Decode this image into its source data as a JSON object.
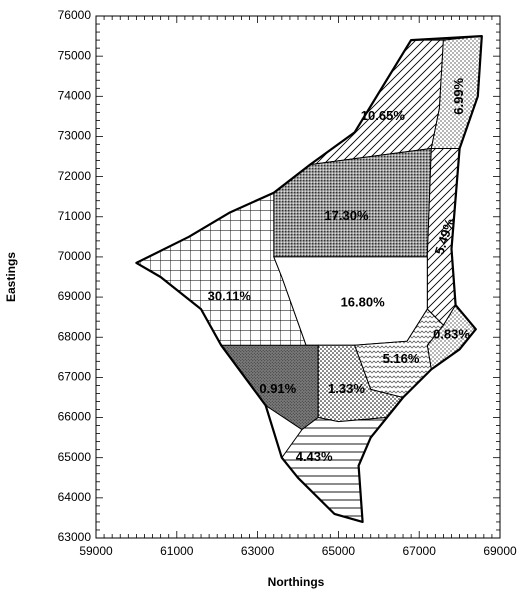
{
  "chart_data": {
    "type": "map",
    "title": "",
    "xlabel": "Northings",
    "ylabel": "Eastings",
    "xlim": [
      59000,
      69000
    ],
    "ylim": [
      63000,
      76000
    ],
    "x_ticks": [
      59000,
      61000,
      63000,
      65000,
      67000,
      69000
    ],
    "y_ticks": [
      63000,
      64000,
      65000,
      66000,
      67000,
      68000,
      69000,
      70000,
      71000,
      72000,
      73000,
      74000,
      75000,
      76000
    ],
    "grid": false,
    "regions": [
      {
        "label": "10.65%",
        "value": 10.65,
        "pattern": "diagonal-lines",
        "boundary": [
          [
            64300,
            72300
          ],
          [
            65400,
            73100
          ],
          [
            66800,
            75400
          ],
          [
            67600,
            75400
          ],
          [
            67500,
            73700
          ],
          [
            67300,
            72700
          ],
          [
            64300,
            72300
          ]
        ],
        "label_at": [
          66100,
          73500
        ],
        "label_rotation": 0
      },
      {
        "label": "6.99%",
        "value": 6.99,
        "pattern": "fine-dots",
        "boundary": [
          [
            67600,
            75400
          ],
          [
            68550,
            75500
          ],
          [
            68450,
            74000
          ],
          [
            68000,
            72700
          ],
          [
            67300,
            72700
          ],
          [
            67500,
            73700
          ],
          [
            67600,
            75400
          ]
        ],
        "label_at": [
          68000,
          74000
        ],
        "label_rotation": -90
      },
      {
        "label": "17.30%",
        "value": 17.3,
        "pattern": "dense-dots",
        "boundary": [
          [
            63400,
            71600
          ],
          [
            64300,
            72300
          ],
          [
            67300,
            72700
          ],
          [
            67200,
            70000
          ],
          [
            63400,
            70000
          ],
          [
            63400,
            71600
          ]
        ],
        "label_at": [
          65200,
          71000
        ],
        "label_rotation": 0
      },
      {
        "label": "5.49%",
        "value": 5.49,
        "pattern": "diagonal-lines",
        "boundary": [
          [
            67300,
            72700
          ],
          [
            68000,
            72700
          ],
          [
            67800,
            70200
          ],
          [
            67900,
            68800
          ],
          [
            67600,
            68300
          ],
          [
            67200,
            68700
          ],
          [
            67200,
            70000
          ],
          [
            67300,
            72700
          ]
        ],
        "label_at": [
          67650,
          70500
        ],
        "label_rotation": -72
      },
      {
        "label": "30.11%",
        "value": 30.11,
        "pattern": "grid",
        "boundary": [
          [
            60000,
            69850
          ],
          [
            61300,
            70500
          ],
          [
            62300,
            71100
          ],
          [
            63400,
            71600
          ],
          [
            63400,
            70000
          ],
          [
            63600,
            69500
          ],
          [
            64200,
            67800
          ],
          [
            62800,
            67700
          ],
          [
            62100,
            67800
          ],
          [
            61600,
            68700
          ],
          [
            60600,
            69500
          ],
          [
            60000,
            69850
          ]
        ],
        "label_at": [
          62300,
          69000
        ],
        "label_rotation": 0
      },
      {
        "label": "16.80%",
        "value": 16.8,
        "pattern": "none",
        "boundary": [
          [
            63400,
            70000
          ],
          [
            67200,
            70000
          ],
          [
            67200,
            68700
          ],
          [
            66700,
            67900
          ],
          [
            65400,
            67800
          ],
          [
            64200,
            67800
          ],
          [
            63600,
            69500
          ],
          [
            63400,
            70000
          ]
        ],
        "label_at": [
          65600,
          68850
        ],
        "label_rotation": 0
      },
      {
        "label": "0.83%",
        "value": 0.83,
        "pattern": "fine-dots",
        "boundary": [
          [
            67600,
            68300
          ],
          [
            67900,
            68800
          ],
          [
            68400,
            68200
          ],
          [
            68000,
            67700
          ],
          [
            67300,
            67200
          ],
          [
            67200,
            67800
          ],
          [
            67600,
            68300
          ]
        ],
        "label_at": [
          67800,
          68050
        ],
        "label_rotation": 0
      },
      {
        "label": "5.16%",
        "value": 5.16,
        "pattern": "wavy",
        "boundary": [
          [
            65400,
            67800
          ],
          [
            66700,
            67900
          ],
          [
            67200,
            68700
          ],
          [
            67600,
            68300
          ],
          [
            67200,
            67800
          ],
          [
            67300,
            67200
          ],
          [
            66600,
            66500
          ],
          [
            65800,
            66700
          ],
          [
            65400,
            67800
          ]
        ],
        "label_at": [
          66550,
          67450
        ],
        "label_rotation": 0
      },
      {
        "label": "0.91%",
        "value": 0.91,
        "pattern": "solid-dark",
        "boundary": [
          [
            62100,
            67800
          ],
          [
            64500,
            67800
          ],
          [
            64500,
            66000
          ],
          [
            64100,
            65700
          ],
          [
            63200,
            66300
          ],
          [
            62100,
            67800
          ]
        ],
        "label_at": [
          63500,
          66700
        ],
        "label_rotation": 0
      },
      {
        "label": "1.33%",
        "value": 1.33,
        "pattern": "dots",
        "boundary": [
          [
            64500,
            67800
          ],
          [
            65400,
            67800
          ],
          [
            65800,
            66700
          ],
          [
            66600,
            66500
          ],
          [
            66200,
            66000
          ],
          [
            65000,
            65900
          ],
          [
            64500,
            66000
          ],
          [
            64500,
            67800
          ]
        ],
        "label_at": [
          65200,
          66700
        ],
        "label_rotation": 0
      },
      {
        "label": "4.43%",
        "value": 4.43,
        "pattern": "horizontal-lines",
        "boundary": [
          [
            64100,
            65700
          ],
          [
            64500,
            66000
          ],
          [
            65000,
            65900
          ],
          [
            66200,
            66000
          ],
          [
            65800,
            65500
          ],
          [
            65500,
            64800
          ],
          [
            65600,
            63400
          ],
          [
            64900,
            63600
          ],
          [
            64000,
            64500
          ],
          [
            63600,
            65000
          ],
          [
            64100,
            65700
          ]
        ],
        "label_at": [
          64400,
          65000
        ],
        "label_rotation": 0
      }
    ]
  },
  "colors": {
    "axis": "#000000",
    "boundary": "#000000",
    "fill_light": "#ffffff",
    "fill_dark": "#7f7f7f"
  }
}
